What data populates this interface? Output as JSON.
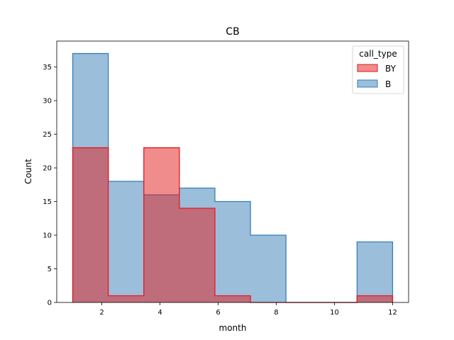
{
  "chart_data": {
    "type": "histogram",
    "title": "CB",
    "xlabel": "month",
    "ylabel": "Count",
    "xlim": [
      0.45,
      12.55
    ],
    "ylim": [
      0,
      38.85
    ],
    "bin_edges": [
      1.0,
      2.2222,
      3.4444,
      4.6667,
      5.8889,
      7.1111,
      8.3333,
      9.5556,
      10.7778,
      12.0
    ],
    "x_ticks": [
      2,
      4,
      6,
      8,
      10,
      12
    ],
    "y_ticks": [
      0,
      5,
      10,
      15,
      20,
      25,
      30,
      35
    ],
    "grid": false,
    "legend": {
      "title": "call_type",
      "placement": "top-right",
      "entries": [
        "BY",
        "B"
      ]
    },
    "series": [
      {
        "name": "B",
        "values": [
          37,
          18,
          16,
          17,
          15,
          10,
          0,
          0,
          9
        ],
        "fill": "#377eb8",
        "edge": "#377eb8"
      },
      {
        "name": "BY",
        "values": [
          23,
          1,
          23,
          14,
          1,
          0,
          0,
          0,
          1
        ],
        "fill": "#e41a1c",
        "edge": "#e41a1c"
      }
    ]
  }
}
